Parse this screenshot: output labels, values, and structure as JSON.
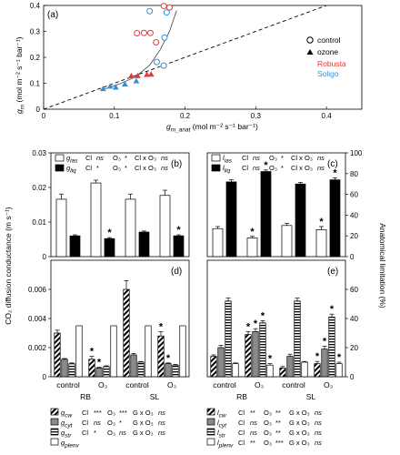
{
  "colors": {
    "robusta": "#e53935",
    "soligo": "#3a8fd0",
    "ink": "#000000"
  },
  "chart_data": [
    {
      "panel": "(a)",
      "type": "scatter",
      "xlabel": "g",
      "xlabel_sub": "m_anat",
      "xlabel_unit": " (mol m⁻² s⁻¹ bar⁻¹)",
      "ylabel": "g",
      "ylabel_sub": "m",
      "ylabel_unit": " (mol m⁻² s⁻¹ bar⁻¹)",
      "xlim": [
        0,
        0.45
      ],
      "ylim": [
        0,
        0.4
      ],
      "xticks": [
        "0",
        "0.1",
        "0.2",
        "0.3",
        "0.4"
      ],
      "yticks": [
        "0",
        "0.1",
        "0.2",
        "0.3",
        "0.4"
      ],
      "legend": {
        "control": "control",
        "ozone": "ozone",
        "robusta": "Robusta",
        "soligo": "Soligo"
      },
      "points": [
        {
          "x": 0.142,
          "y": 0.294,
          "cultivar": "robusta",
          "treatment": "control"
        },
        {
          "x": 0.151,
          "y": 0.294,
          "cultivar": "robusta",
          "treatment": "control"
        },
        {
          "x": 0.132,
          "y": 0.293,
          "cultivar": "robusta",
          "treatment": "control"
        },
        {
          "x": 0.159,
          "y": 0.258,
          "cultivar": "robusta",
          "treatment": "control"
        },
        {
          "x": 0.17,
          "y": 0.398,
          "cultivar": "robusta",
          "treatment": "control"
        },
        {
          "x": 0.178,
          "y": 0.392,
          "cultivar": "robusta",
          "treatment": "control"
        },
        {
          "x": 0.15,
          "y": 0.378,
          "cultivar": "soligo",
          "treatment": "control"
        },
        {
          "x": 0.174,
          "y": 0.373,
          "cultivar": "soligo",
          "treatment": "control"
        },
        {
          "x": 0.171,
          "y": 0.276,
          "cultivar": "soligo",
          "treatment": "control"
        },
        {
          "x": 0.16,
          "y": 0.182,
          "cultivar": "soligo",
          "treatment": "control"
        },
        {
          "x": 0.17,
          "y": 0.168,
          "cultivar": "soligo",
          "treatment": "control"
        },
        {
          "x": 0.124,
          "y": 0.128,
          "cultivar": "robusta",
          "treatment": "ozone"
        },
        {
          "x": 0.133,
          "y": 0.128,
          "cultivar": "robusta",
          "treatment": "ozone"
        },
        {
          "x": 0.146,
          "y": 0.133,
          "cultivar": "robusta",
          "treatment": "ozone"
        },
        {
          "x": 0.152,
          "y": 0.134,
          "cultivar": "robusta",
          "treatment": "ozone"
        },
        {
          "x": 0.084,
          "y": 0.078,
          "cultivar": "soligo",
          "treatment": "ozone"
        },
        {
          "x": 0.094,
          "y": 0.088,
          "cultivar": "soligo",
          "treatment": "ozone"
        },
        {
          "x": 0.102,
          "y": 0.084,
          "cultivar": "soligo",
          "treatment": "ozone"
        },
        {
          "x": 0.115,
          "y": 0.096,
          "cultivar": "soligo",
          "treatment": "ozone"
        },
        {
          "x": 0.131,
          "y": 0.108,
          "cultivar": "soligo",
          "treatment": "ozone"
        }
      ]
    },
    {
      "panel": "(b)",
      "type": "bar",
      "groups": [
        "control",
        "O₃",
        "control",
        "O₃"
      ],
      "series_keys": [
        "gias",
        "gliq"
      ],
      "series_labels": {
        "gias": "g",
        "gias_sub": "ias",
        "gliq": "g",
        "gliq_sub": "liq"
      },
      "values": {
        "gias": [
          0.0166,
          0.0213,
          0.0166,
          0.0177
        ],
        "gliq": [
          0.006,
          0.0052,
          0.0071,
          0.006
        ]
      },
      "errors": {
        "gias": [
          0.0015,
          0.0008,
          0.0015,
          0.0015
        ],
        "gliq": [
          0.0003,
          0.0003,
          0.0003,
          0.0003
        ]
      },
      "stars": [
        {
          "series": "gliq",
          "group": 1
        },
        {
          "series": "gliq",
          "group": 3
        }
      ],
      "ylim": [
        0,
        0.03
      ],
      "yticks": [
        "0",
        "0.01",
        "0.02",
        "0.03"
      ],
      "stats": [
        [
          "Cl",
          "ns",
          "O₃",
          "*",
          "Cl x O₃",
          "ns"
        ],
        [
          "Cl",
          "*",
          "O₃",
          "*",
          "Cl x O₃",
          "ns"
        ]
      ]
    },
    {
      "panel": "(c)",
      "type": "bar",
      "series_keys": [
        "lias",
        "lliq"
      ],
      "series_labels": {
        "lias": "l",
        "lias_sub": "ias",
        "lliq": "l",
        "lliq_sub": "liq"
      },
      "values": {
        "lias": [
          27,
          18,
          30,
          26
        ],
        "lliq": [
          72,
          82,
          70,
          74
        ]
      },
      "errors": {
        "lias": [
          2,
          1.5,
          2,
          3
        ],
        "lliq": [
          2,
          1.5,
          1.5,
          2
        ]
      },
      "stars": [
        {
          "series": "lias",
          "group": 1
        },
        {
          "series": "lliq",
          "group": 1
        },
        {
          "series": "lias",
          "group": 3
        },
        {
          "series": "lliq",
          "group": 3
        }
      ],
      "ylim": [
        0,
        100
      ],
      "yticks": [
        "0",
        "20",
        "40",
        "60",
        "80",
        "100"
      ],
      "stats": [
        [
          "Cl",
          "ns",
          "O₃",
          "*",
          "Cl x O₃",
          "ns"
        ],
        [
          "Cl",
          "ns",
          "O₃",
          "*",
          "Cl x O₃",
          "ns"
        ]
      ]
    },
    {
      "panel": "(d)",
      "type": "bar",
      "series_keys": [
        "gcw",
        "gcyt",
        "gstr",
        "gplenv"
      ],
      "values": {
        "gcw": [
          0.003,
          0.0012,
          0.006,
          0.0028
        ],
        "gcyt": [
          0.0012,
          0.0006,
          0.0015,
          0.0009
        ],
        "gstr": [
          0.0009,
          0.0007,
          0.001,
          0.0008
        ],
        "gplenv": [
          0.0035,
          0.0035,
          0.0035,
          0.0035
        ]
      },
      "errors": {
        "gcw": [
          0.0002,
          0.0002,
          0.0006,
          0.0003
        ],
        "gcyt": [
          5e-05,
          5e-05,
          0.0001,
          5e-05
        ],
        "gstr": [
          5e-05,
          5e-05,
          5e-05,
          5e-05
        ],
        "gplenv": [
          0,
          0,
          0,
          0
        ]
      },
      "stars": [
        {
          "series": "gcw",
          "group": 1
        },
        {
          "series": "gcyt",
          "group": 1
        },
        {
          "series": "gcw",
          "group": 3
        },
        {
          "series": "gcyt",
          "group": 3
        }
      ],
      "ylim": [
        0,
        0.008
      ],
      "yticks": [
        "0",
        "0.002",
        "0.004",
        "0.006"
      ]
    },
    {
      "panel": "(e)",
      "type": "bar",
      "series_keys": [
        "lcw",
        "lcyt",
        "lstr",
        "lplenv"
      ],
      "values": {
        "lcw": [
          14,
          29,
          6,
          9
        ],
        "lcyt": [
          20,
          31,
          14,
          19
        ],
        "lstr": [
          52,
          37,
          52,
          41
        ],
        "lplenv": [
          9,
          8,
          10,
          9
        ]
      },
      "errors": {
        "lcw": [
          1,
          2,
          1,
          1.5
        ],
        "lcyt": [
          1.5,
          2,
          1.5,
          2
        ],
        "lstr": [
          2,
          1.5,
          2,
          2
        ],
        "lplenv": [
          0.5,
          1,
          0.5,
          1
        ]
      },
      "stars": [
        {
          "series": "lcw",
          "group": 1
        },
        {
          "series": "lcyt",
          "group": 1
        },
        {
          "series": "lstr",
          "group": 1
        },
        {
          "series": "lplenv",
          "group": 1
        },
        {
          "series": "lcw",
          "group": 3
        },
        {
          "series": "lcyt",
          "group": 3
        },
        {
          "series": "lstr",
          "group": 3
        },
        {
          "series": "lplenv",
          "group": 3
        }
      ],
      "ylim": [
        0,
        80
      ],
      "yticks": [
        "0",
        "20",
        "40",
        "60"
      ]
    }
  ],
  "labels": {
    "ylabel_left": "CO₂ diffusion conductance (m s⁻¹)",
    "ylabel_right": "Anatomical limitation (%)",
    "groups": [
      "control",
      "O₃",
      "control",
      "O₃"
    ],
    "cultivars": [
      "RB",
      "SL"
    ],
    "star": "*"
  },
  "legend_left": [
    {
      "sym": "g",
      "sub": "cw",
      "stats": [
        "Cl",
        "***",
        "O₃",
        "***",
        "G x O₃",
        "ns"
      ]
    },
    {
      "sym": "g",
      "sub": "cyt",
      "stats": [
        "Cl",
        "ns",
        "O₃",
        "*",
        "G x O₃",
        "ns"
      ]
    },
    {
      "sym": "g",
      "sub": "str",
      "stats": [
        "Cl",
        "*",
        "O₃",
        "ns",
        "G x O₃",
        "ns"
      ]
    },
    {
      "sym": "g",
      "sub": "plenv",
      "stats": [
        "",
        "",
        "",
        "",
        "",
        ""
      ]
    }
  ],
  "legend_right": [
    {
      "sym": "l",
      "sub": "cw",
      "stats": [
        "Cl",
        "**",
        "O₃",
        "**",
        "G x O₃",
        "ns"
      ]
    },
    {
      "sym": "l",
      "sub": "cyt",
      "stats": [
        "Cl",
        "ns",
        "O₃",
        "**",
        "G x O₃",
        "ns"
      ]
    },
    {
      "sym": "l",
      "sub": "str",
      "stats": [
        "Cl",
        "ns",
        "O₃",
        "**",
        "G x O₃",
        "ns"
      ]
    },
    {
      "sym": "l",
      "sub": "plenv",
      "stats": [
        "Cl",
        "**",
        "O₃",
        "***",
        "G x O₃",
        "ns"
      ]
    }
  ]
}
